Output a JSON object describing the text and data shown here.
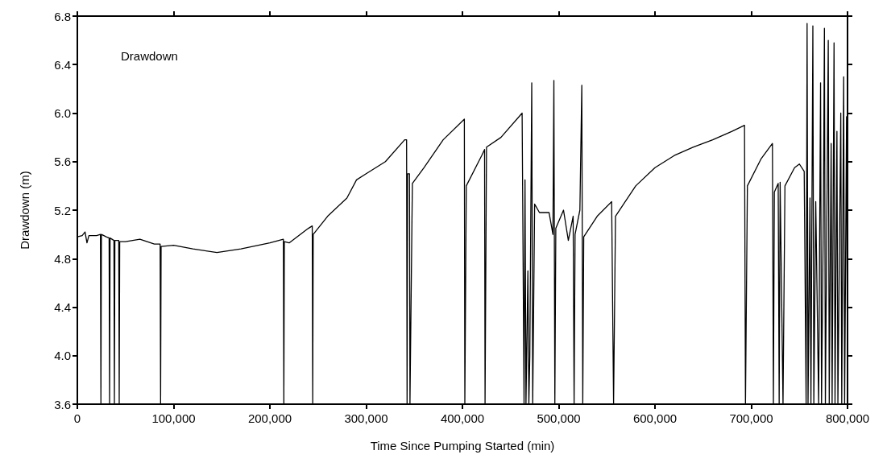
{
  "chart_data": {
    "type": "line",
    "xlabel": "Time Since Pumping Started (min)",
    "ylabel": "Drawdown (m)",
    "annotations": [
      "Drawdown"
    ],
    "xlim": [
      0,
      800000
    ],
    "xticks": [
      0,
      {
        "value": 100000,
        "label": "100,000"
      },
      {
        "value": 200000,
        "label": "200,000"
      },
      {
        "value": 300000,
        "label": "300,000"
      },
      {
        "value": 400000,
        "label": "400,000"
      },
      {
        "value": 500000,
        "label": "500,000"
      },
      {
        "value": 600000,
        "label": "600,000"
      },
      {
        "value": 700000,
        "label": "700,000"
      },
      {
        "value": 800000,
        "label": "800,000"
      }
    ],
    "ylim": [
      3.6,
      6.8
    ],
    "yticks": [
      3.6,
      {
        "value": 4,
        "label": "4.0"
      },
      4.4,
      4.8,
      5.2,
      5.6,
      {
        "value": 6,
        "label": "6.0"
      },
      6.4,
      6.8
    ],
    "grid": false,
    "marker": "none",
    "series": [
      {
        "color": "#000000",
        "x": [
          0,
          5000,
          8000,
          10000,
          12000,
          20000,
          24000,
          24500,
          25000,
          30000,
          33000,
          33500,
          34000,
          38000,
          38500,
          39000,
          43000,
          43500,
          44000,
          50000,
          65000,
          80000,
          86000,
          86500,
          87000,
          100000,
          120000,
          145000,
          170000,
          200000,
          214000,
          214500,
          215000,
          220000,
          240000,
          244000,
          244500,
          245000,
          260000,
          280000,
          290000,
          300000,
          320000,
          340000,
          342000,
          342500,
          343000,
          345000,
          345500,
          348000,
          360000,
          380000,
          402000,
          402500,
          404000,
          420000,
          423000,
          423500,
          425000,
          440000,
          462000,
          464000,
          465000,
          466000,
          468000,
          469000,
          470000,
          472000,
          473000,
          475000,
          480000,
          490000,
          494000,
          495000,
          496000,
          497000,
          505000,
          510000,
          515000,
          516000,
          517000,
          522000,
          524000,
          525000,
          526000,
          540000,
          555000,
          557000,
          559000,
          580000,
          600000,
          620000,
          640000,
          660000,
          680000,
          693000,
          694000,
          696000,
          710000,
          722000,
          723000,
          724000,
          728000,
          729000,
          730000,
          733000,
          735000,
          745000,
          750000,
          755000,
          757000,
          758000,
          759000,
          761000,
          762000,
          764000,
          765000,
          767000,
          770000,
          772000,
          773000,
          775000,
          776000,
          777000,
          780000,
          781000,
          783000,
          784000,
          786000,
          787000,
          789000,
          790000,
          793000,
          794000,
          796000,
          797000,
          799000,
          800000
        ],
        "values": [
          4.98,
          4.99,
          5.02,
          4.93,
          4.99,
          4.99,
          5.0,
          3.6,
          5.0,
          4.98,
          4.97,
          3.6,
          4.97,
          4.95,
          3.6,
          4.95,
          4.95,
          3.6,
          4.94,
          4.94,
          4.96,
          4.92,
          4.92,
          3.6,
          4.9,
          4.91,
          4.88,
          4.85,
          4.88,
          4.93,
          4.96,
          3.6,
          4.94,
          4.93,
          5.05,
          5.07,
          3.6,
          5.0,
          5.15,
          5.3,
          5.45,
          5.5,
          5.6,
          5.78,
          5.78,
          3.6,
          5.5,
          5.5,
          3.6,
          5.42,
          5.55,
          5.78,
          5.95,
          3.6,
          5.4,
          5.65,
          5.7,
          3.6,
          5.72,
          5.8,
          6.0,
          3.6,
          5.45,
          3.6,
          4.7,
          3.6,
          4.0,
          6.25,
          3.6,
          5.25,
          5.18,
          5.18,
          5.0,
          6.27,
          3.6,
          5.05,
          5.2,
          4.95,
          5.15,
          3.6,
          5.0,
          5.2,
          6.23,
          3.6,
          4.98,
          5.15,
          5.27,
          3.6,
          5.15,
          5.4,
          5.55,
          5.65,
          5.72,
          5.78,
          5.85,
          5.9,
          3.6,
          5.4,
          5.62,
          5.75,
          3.6,
          5.35,
          5.42,
          3.6,
          5.43,
          3.6,
          5.4,
          5.55,
          5.58,
          5.52,
          3.6,
          6.74,
          3.6,
          5.3,
          3.6,
          6.72,
          3.6,
          5.27,
          3.6,
          6.25,
          3.6,
          5.25,
          6.7,
          3.6,
          6.6,
          3.6,
          5.75,
          3.6,
          6.58,
          3.6,
          5.85,
          3.6,
          6.0,
          3.6,
          6.3,
          3.6,
          5.97,
          3.6
        ]
      }
    ]
  }
}
